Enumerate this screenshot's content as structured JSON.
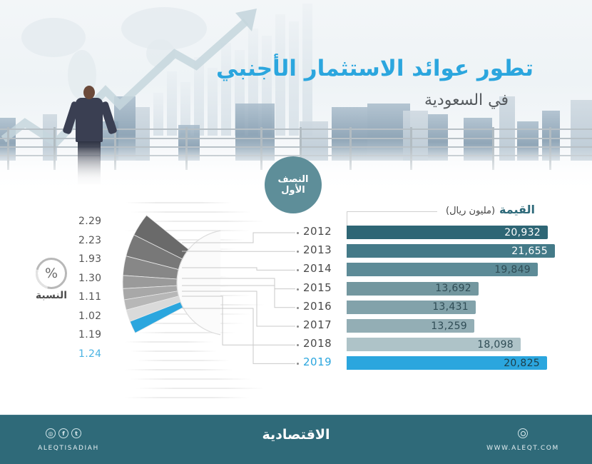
{
  "header": {
    "title": "تطور عوائد الاستثمار الأجنبي",
    "subtitle": "في السعودية",
    "period_badge_line1": "النصف",
    "period_badge_line2": "الأول"
  },
  "value_section": {
    "title": "القيمة",
    "unit": "(مليون ريال)"
  },
  "percent_section": {
    "icon_symbol": "%",
    "label": "النسبة"
  },
  "colors": {
    "title_blue": "#2ba6de",
    "highlight_blue": "#2ba6de",
    "footer_teal": "#2f6a79",
    "badge_teal": "#5e8e99"
  },
  "chart_data": [
    {
      "type": "bar",
      "orientation": "horizontal",
      "title": "القيمة (مليون ريال)",
      "categories": [
        "2012",
        "2013",
        "2014",
        "2015",
        "2016",
        "2017",
        "2018",
        "2019"
      ],
      "values": [
        20932,
        21655,
        19849,
        13692,
        13431,
        13259,
        18098,
        20825
      ],
      "labels": [
        "20,932",
        "21,655",
        "19,849",
        "13,692",
        "13,431",
        "13,259",
        "18,098",
        "20,825"
      ],
      "bar_colors": [
        "#2e6675",
        "#447a88",
        "#5d8b97",
        "#73979f",
        "#82a2aa",
        "#93aeb5",
        "#aec3c8",
        "#2ba6de"
      ],
      "highlight": "2019",
      "xlabel": "",
      "ylabel": ""
    },
    {
      "type": "pie",
      "variant": "fan-segments",
      "title": "النسبة (%)",
      "categories": [
        "2012",
        "2013",
        "2014",
        "2015",
        "2016",
        "2017",
        "2018",
        "2019"
      ],
      "values": [
        2.29,
        2.23,
        1.93,
        1.3,
        1.11,
        1.02,
        1.19,
        1.24
      ],
      "labels": [
        "2.29",
        "2.23",
        "1.93",
        "1.30",
        "1.11",
        "1.02",
        "1.19",
        "1.24"
      ],
      "segment_colors": [
        "#6a6a6a",
        "#787878",
        "#878787",
        "#9a9a9a",
        "#a8a8a8",
        "#b7b7b7",
        "#dadada",
        "#2ba6de"
      ],
      "highlight": "2019"
    }
  ],
  "footer": {
    "social_icons": [
      "instagram-icon",
      "facebook-icon",
      "twitter-icon"
    ],
    "social_glyphs": [
      "◎",
      "f",
      "t"
    ],
    "handle": "ALEQTISADIAH",
    "logo": "الاقتصادية",
    "website": "WWW.ALEQT.COM"
  }
}
